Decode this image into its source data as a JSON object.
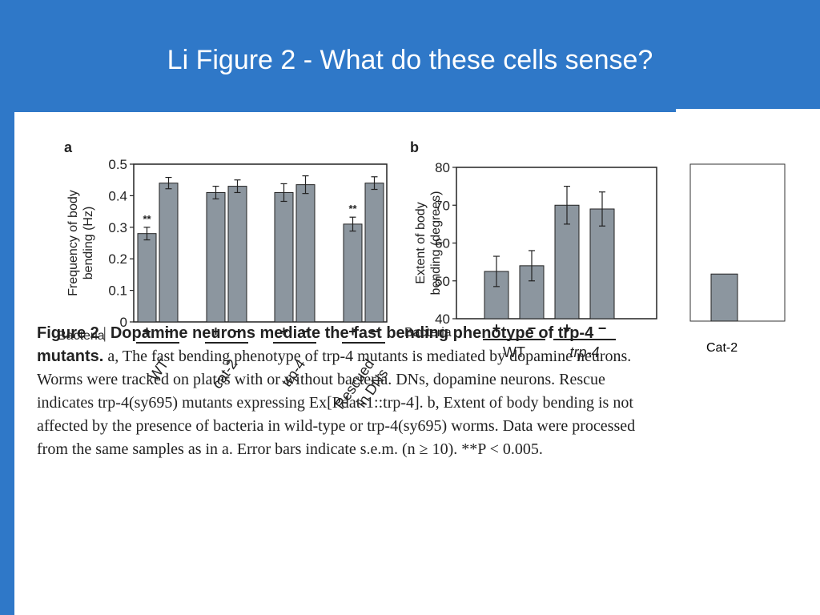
{
  "slide": {
    "title": "Li Figure 2 - What do these cells sense?"
  },
  "colors": {
    "background": "#2f78c8",
    "bar": "#8c969f",
    "text": "#222222"
  },
  "chart_data": [
    {
      "id": "a",
      "panel_label": "a",
      "type": "bar",
      "ylabel": "Frequency of body bending (Hz)",
      "ylim": [
        0,
        0.5
      ],
      "yticks": [
        0,
        0.1,
        0.2,
        0.3,
        0.4,
        0.5
      ],
      "ytick_labels": [
        "0",
        "0.1",
        "0.2",
        "0.3",
        "0.4",
        "0.5"
      ],
      "bacteria_label": "Bacteria",
      "groups": [
        {
          "label": "WT",
          "bars": [
            {
              "bacteria": "+",
              "value": 0.28,
              "err": 0.02,
              "sig": "**"
            },
            {
              "bacteria": "−",
              "value": 0.44,
              "err": 0.018
            }
          ]
        },
        {
          "label": "cat-2",
          "bars": [
            {
              "bacteria": "+",
              "value": 0.41,
              "err": 0.02
            },
            {
              "bacteria": "−",
              "value": 0.43,
              "err": 0.02
            }
          ]
        },
        {
          "label": "trp-4",
          "bars": [
            {
              "bacteria": "+",
              "value": 0.41,
              "err": 0.028
            },
            {
              "bacteria": "−",
              "value": 0.435,
              "err": 0.028
            }
          ]
        },
        {
          "label": "Rescued in DNs",
          "bars": [
            {
              "bacteria": "+",
              "value": 0.31,
              "err": 0.022,
              "sig": "**"
            },
            {
              "bacteria": "−",
              "value": 0.44,
              "err": 0.02
            }
          ]
        }
      ]
    },
    {
      "id": "b",
      "panel_label": "b",
      "type": "bar",
      "ylabel": "Extent of body bending (degrees)",
      "ylim": [
        40,
        80
      ],
      "yticks": [
        40,
        50,
        60,
        70,
        80
      ],
      "ytick_labels": [
        "40",
        "50",
        "60",
        "70",
        "80"
      ],
      "bacteria_label": "Bacteria",
      "groups": [
        {
          "label": "WT",
          "bars": [
            {
              "bacteria": "+",
              "value": 52.5,
              "err": 4
            },
            {
              "bacteria": "−",
              "value": 54,
              "err": 4
            }
          ]
        },
        {
          "label": "trp-4",
          "bars": [
            {
              "bacteria": "+",
              "value": 70,
              "err": 5
            },
            {
              "bacteria": "−",
              "value": 69,
              "err": 4.5
            }
          ]
        }
      ]
    },
    {
      "id": "inset",
      "type": "bar",
      "categories": [
        "Cat-2"
      ],
      "values": [
        0.3
      ],
      "ylim": [
        0,
        1
      ],
      "xlabel": "Cat-2"
    }
  ],
  "caption": {
    "fig_number": "Figure 2",
    "separator": "|",
    "title": "Dopamine neurons mediate the fast bending phenotype of trp-4 mutants.",
    "body": "a, The fast bending phenotype of trp-4 mutants is mediated by dopamine neurons. Worms were tracked on plates with or without bacteria. DNs, dopamine neurons. Rescue indicates trp-4(sy695) mutants expressing Ex[Pdat-1::trp-4]. b, Extent of body bending is not affected by the presence of bacteria in wild-type or trp-4(sy695) worms. Data were processed from the same samples as in a. Error bars indicate s.e.m. (n ≥ 10). **P < 0.005."
  }
}
